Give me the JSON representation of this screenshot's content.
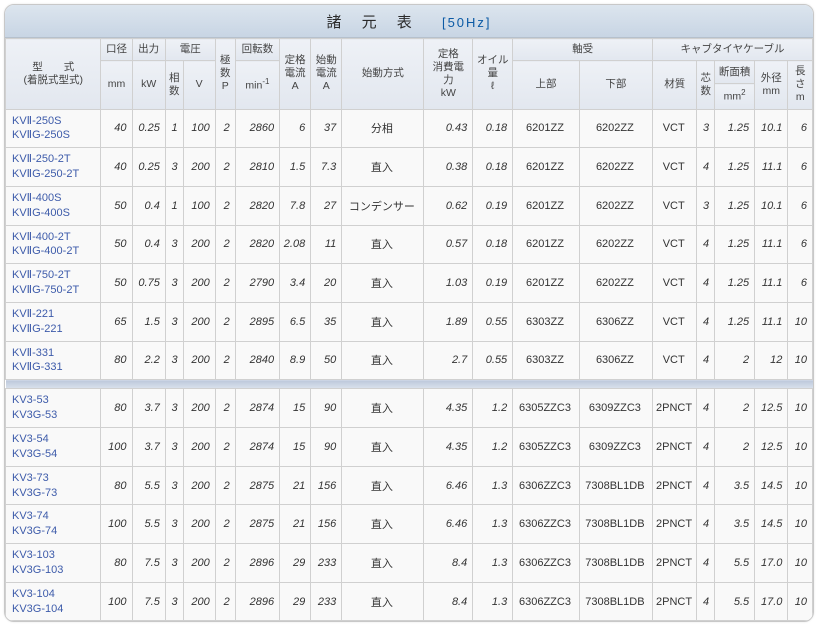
{
  "title": "諸 元 表",
  "hz": "[50Hz]",
  "headers": {
    "model": "型　　式\n(着脱式型式)",
    "dia": "口径",
    "dia_u": "mm",
    "out": "出力",
    "out_u": "kW",
    "volt_group": "電圧",
    "phase": "相\n数",
    "volt": "V",
    "poles": "極\n数\nP",
    "rpm": "回転数",
    "rpm_u": "min",
    "rated_a": "定格\n電流\nA",
    "start_a": "始動\n電流\nA",
    "start_m": "始動方式",
    "rated_p": "定格\n消費電力\nkW",
    "oil": "オイル\n量\nℓ",
    "bearing_group": "軸受",
    "b_upper": "上部",
    "b_lower": "下部",
    "cable_group": "キャブタイヤケーブル",
    "c_mat": "材質",
    "c_core": "芯\n数",
    "c_area": "断面積",
    "c_area_u": "mm",
    "c_od": "外径\nmm",
    "c_len": "長さ\nm"
  },
  "rows1": [
    {
      "model": "KVⅡ-250S\nKVⅡG-250S",
      "dia": "40",
      "out": "0.25",
      "ph": "1",
      "v": "100",
      "p": "2",
      "rpm": "2860",
      "ra": "6",
      "sa": "37",
      "sm": "分相",
      "rp": "0.43",
      "oil": "0.18",
      "bu": "6201ZZ",
      "bl": "6202ZZ",
      "cm": "VCT",
      "cc": "3",
      "ca": "1.25",
      "co": "10.1",
      "cl": "6"
    },
    {
      "model": "KVⅡ-250-2T\nKVⅡG-250-2T",
      "dia": "40",
      "out": "0.25",
      "ph": "3",
      "v": "200",
      "p": "2",
      "rpm": "2810",
      "ra": "1.5",
      "sa": "7.3",
      "sm": "直入",
      "rp": "0.38",
      "oil": "0.18",
      "bu": "6201ZZ",
      "bl": "6202ZZ",
      "cm": "VCT",
      "cc": "4",
      "ca": "1.25",
      "co": "11.1",
      "cl": "6"
    },
    {
      "model": "KVⅡ-400S\nKVⅡG-400S",
      "dia": "50",
      "out": "0.4",
      "ph": "1",
      "v": "100",
      "p": "2",
      "rpm": "2820",
      "ra": "7.8",
      "sa": "27",
      "sm": "コンデンサー",
      "rp": "0.62",
      "oil": "0.19",
      "bu": "6201ZZ",
      "bl": "6202ZZ",
      "cm": "VCT",
      "cc": "3",
      "ca": "1.25",
      "co": "10.1",
      "cl": "6"
    },
    {
      "model": "KVⅡ-400-2T\nKVⅡG-400-2T",
      "dia": "50",
      "out": "0.4",
      "ph": "3",
      "v": "200",
      "p": "2",
      "rpm": "2820",
      "ra": "2.08",
      "sa": "11",
      "sm": "直入",
      "rp": "0.57",
      "oil": "0.18",
      "bu": "6201ZZ",
      "bl": "6202ZZ",
      "cm": "VCT",
      "cc": "4",
      "ca": "1.25",
      "co": "11.1",
      "cl": "6"
    },
    {
      "model": "KVⅡ-750-2T\nKVⅡG-750-2T",
      "dia": "50",
      "out": "0.75",
      "ph": "3",
      "v": "200",
      "p": "2",
      "rpm": "2790",
      "ra": "3.4",
      "sa": "20",
      "sm": "直入",
      "rp": "1.03",
      "oil": "0.19",
      "bu": "6201ZZ",
      "bl": "6202ZZ",
      "cm": "VCT",
      "cc": "4",
      "ca": "1.25",
      "co": "11.1",
      "cl": "6"
    },
    {
      "model": "KVⅡ-221\nKVⅡG-221",
      "dia": "65",
      "out": "1.5",
      "ph": "3",
      "v": "200",
      "p": "2",
      "rpm": "2895",
      "ra": "6.5",
      "sa": "35",
      "sm": "直入",
      "rp": "1.89",
      "oil": "0.55",
      "bu": "6303ZZ",
      "bl": "6306ZZ",
      "cm": "VCT",
      "cc": "4",
      "ca": "1.25",
      "co": "11.1",
      "cl": "10"
    },
    {
      "model": "KVⅡ-331\nKVⅡG-331",
      "dia": "80",
      "out": "2.2",
      "ph": "3",
      "v": "200",
      "p": "2",
      "rpm": "2840",
      "ra": "8.9",
      "sa": "50",
      "sm": "直入",
      "rp": "2.7",
      "oil": "0.55",
      "bu": "6303ZZ",
      "bl": "6306ZZ",
      "cm": "VCT",
      "cc": "4",
      "ca": "2",
      "co": "12",
      "cl": "10"
    }
  ],
  "rows2": [
    {
      "model": "KV3-53\nKV3G-53",
      "dia": "80",
      "out": "3.7",
      "ph": "3",
      "v": "200",
      "p": "2",
      "rpm": "2874",
      "ra": "15",
      "sa": "90",
      "sm": "直入",
      "rp": "4.35",
      "oil": "1.2",
      "bu": "6305ZZC3",
      "bl": "6309ZZC3",
      "cm": "2PNCT",
      "cc": "4",
      "ca": "2",
      "co": "12.5",
      "cl": "10"
    },
    {
      "model": "KV3-54\nKV3G-54",
      "dia": "100",
      "out": "3.7",
      "ph": "3",
      "v": "200",
      "p": "2",
      "rpm": "2874",
      "ra": "15",
      "sa": "90",
      "sm": "直入",
      "rp": "4.35",
      "oil": "1.2",
      "bu": "6305ZZC3",
      "bl": "6309ZZC3",
      "cm": "2PNCT",
      "cc": "4",
      "ca": "2",
      "co": "12.5",
      "cl": "10"
    },
    {
      "model": "KV3-73\nKV3G-73",
      "dia": "80",
      "out": "5.5",
      "ph": "3",
      "v": "200",
      "p": "2",
      "rpm": "2875",
      "ra": "21",
      "sa": "156",
      "sm": "直入",
      "rp": "6.46",
      "oil": "1.3",
      "bu": "6306ZZC3",
      "bl": "7308BL1DB",
      "cm": "2PNCT",
      "cc": "4",
      "ca": "3.5",
      "co": "14.5",
      "cl": "10"
    },
    {
      "model": "KV3-74\nKV3G-74",
      "dia": "100",
      "out": "5.5",
      "ph": "3",
      "v": "200",
      "p": "2",
      "rpm": "2875",
      "ra": "21",
      "sa": "156",
      "sm": "直入",
      "rp": "6.46",
      "oil": "1.3",
      "bu": "6306ZZC3",
      "bl": "7308BL1DB",
      "cm": "2PNCT",
      "cc": "4",
      "ca": "3.5",
      "co": "14.5",
      "cl": "10"
    },
    {
      "model": "KV3-103\nKV3G-103",
      "dia": "80",
      "out": "7.5",
      "ph": "3",
      "v": "200",
      "p": "2",
      "rpm": "2896",
      "ra": "29",
      "sa": "233",
      "sm": "直入",
      "rp": "8.4",
      "oil": "1.3",
      "bu": "6306ZZC3",
      "bl": "7308BL1DB",
      "cm": "2PNCT",
      "cc": "4",
      "ca": "5.5",
      "co": "17.0",
      "cl": "10"
    },
    {
      "model": "KV3-104\nKV3G-104",
      "dia": "100",
      "out": "7.5",
      "ph": "3",
      "v": "200",
      "p": "2",
      "rpm": "2896",
      "ra": "29",
      "sa": "233",
      "sm": "直入",
      "rp": "8.4",
      "oil": "1.3",
      "bu": "6306ZZC3",
      "bl": "7308BL1DB",
      "cm": "2PNCT",
      "cc": "4",
      "ca": "5.5",
      "co": "17.0",
      "cl": "10"
    }
  ]
}
